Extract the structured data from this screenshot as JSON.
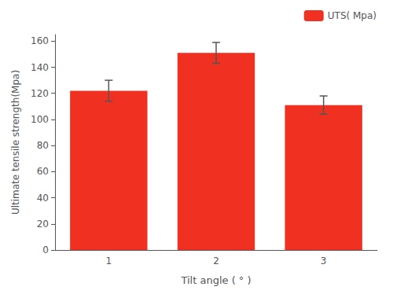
{
  "chart_data": {
    "type": "bar",
    "categories": [
      "1",
      "2",
      "3"
    ],
    "values": [
      122,
      151,
      111
    ],
    "errors": [
      8,
      8,
      7
    ],
    "color": "#f03020",
    "xlabel": "Tilt angle ( ° )",
    "ylabel": "Ultimate tensile strength(Mpa)",
    "series_name": "UTS( Mpa)",
    "ylim": [
      0,
      165
    ],
    "yticks": [
      0,
      20,
      40,
      60,
      80,
      100,
      120,
      140,
      160
    ],
    "legend": "upper right",
    "grid": false
  }
}
